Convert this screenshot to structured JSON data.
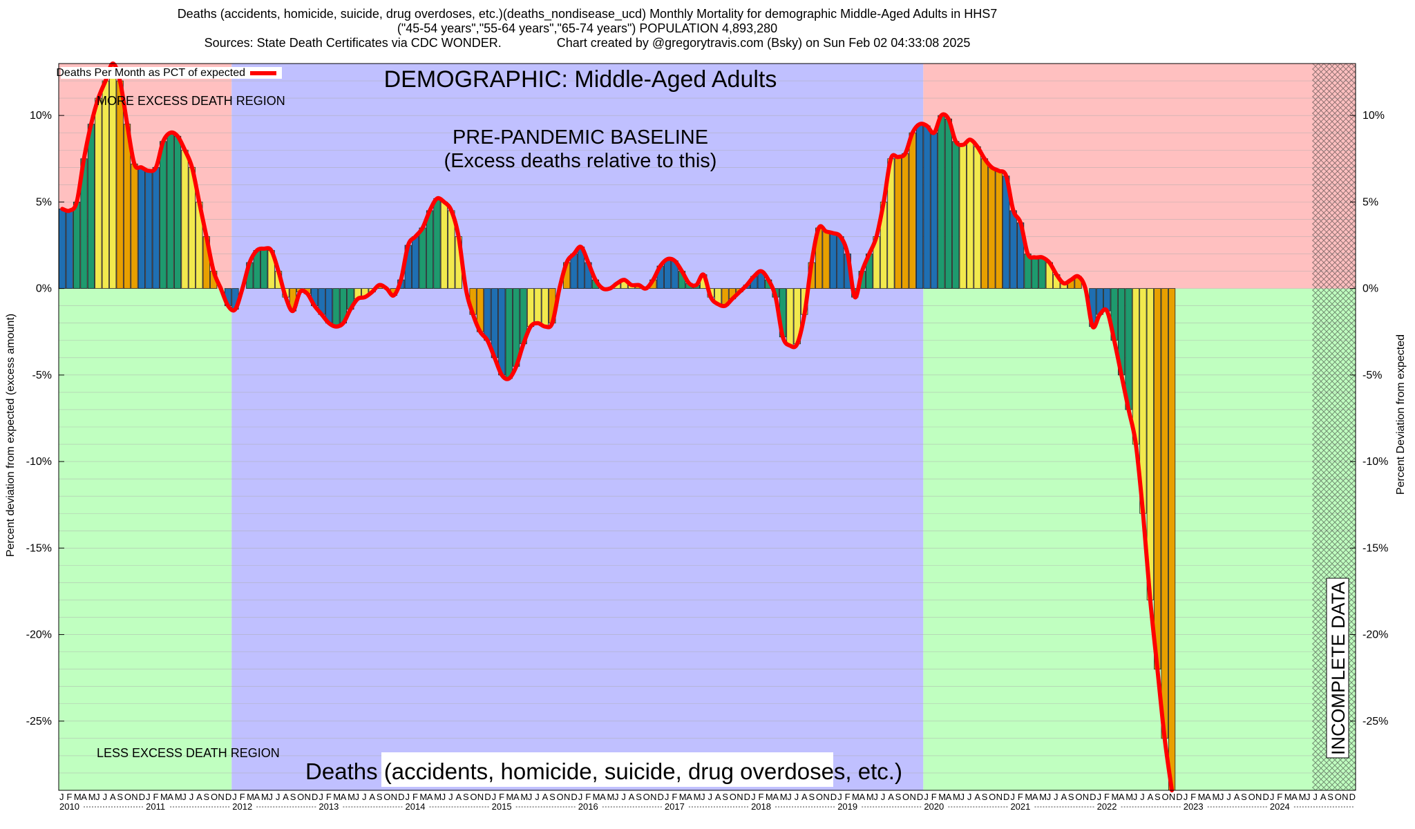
{
  "header": {
    "line1": "Deaths (accidents, homicide, suicide, drug overdoses, etc.)(deaths_nondisease_ucd) Monthly Mortality for demographic Middle-Aged Adults in HHS7",
    "line2": "(\"45-54 years\",\"55-64 years\",\"65-74 years\") POPULATION 4,893,280",
    "line3": "Sources: State Death Certificates via CDC WONDER.                Chart created by @gregorytravis.com (Bsky) on Sun Feb 02 04:33:08 2025"
  },
  "chart_data": {
    "type": "bar",
    "title": "DEMOGRAPHIC: Middle-Aged Adults",
    "bottom_title": "Deaths (accidents, homicide, suicide, drug overdoses, etc.)",
    "ylabel_left": "Percent deviation from expected (excess amount)",
    "ylabel_right": "Percent Deviation from expected",
    "legend": "Deaths Per Month as PCT of expected",
    "legend_position": "top-left",
    "ylim": [
      -29,
      13
    ],
    "yticks": [
      10,
      5,
      0,
      -5,
      -10,
      -15,
      -20,
      -25
    ],
    "ytick_labels": [
      "10%",
      "5%",
      "0%",
      "-5%",
      "-10%",
      "-15%",
      "-20%",
      "-25%"
    ],
    "grid": true,
    "months": [
      "J",
      "F",
      "M",
      "A",
      "M",
      "J",
      "J",
      "A",
      "S",
      "O",
      "N",
      "D"
    ],
    "years": [
      "2010",
      "2011",
      "2012",
      "2013",
      "2014",
      "2015",
      "2016",
      "2017",
      "2018",
      "2019",
      "2020",
      "2021",
      "2022",
      "2023",
      "2024"
    ],
    "x_start": "2010-01",
    "annotations": {
      "more_region": "MORE EXCESS DEATH REGION",
      "less_region": "LESS EXCESS DEATH REGION",
      "baseline_line1": "PRE-PANDEMIC BASELINE",
      "baseline_line2": "(Excess deaths relative to this)",
      "incomplete": "INCOMPLETE DATA"
    },
    "regions": {
      "baseline_start": "2012-01",
      "baseline_end": "2019-12",
      "incomplete_start": "2024-07"
    },
    "season_colors": {
      "winter": "#1f6fb2",
      "spring": "#1e9a6e",
      "summer": "#f2e94e",
      "autumn": "#e8a000"
    },
    "series": [
      {
        "name": "Deaths Per Month as PCT of expected",
        "color": "#ff0000",
        "values": [
          4.6,
          4.5,
          5.0,
          7.5,
          9.5,
          11.0,
          12.0,
          13.0,
          12.0,
          9.5,
          7.2,
          7.0,
          6.8,
          7.0,
          8.5,
          9.0,
          8.8,
          8.0,
          7.0,
          5.0,
          3.0,
          1.0,
          0.0,
          -1.0,
          -1.2,
          0.0,
          1.5,
          2.2,
          2.3,
          2.2,
          1.0,
          -0.5,
          -1.3,
          -0.2,
          -0.3,
          -1.0,
          -1.5,
          -2.0,
          -2.2,
          -2.0,
          -1.2,
          -0.6,
          -0.5,
          -0.2,
          0.2,
          0.0,
          -0.4,
          0.5,
          2.5,
          3.0,
          3.5,
          4.5,
          5.2,
          5.0,
          4.5,
          3.0,
          0.0,
          -1.5,
          -2.5,
          -3.0,
          -4.0,
          -5.0,
          -5.2,
          -4.5,
          -3.2,
          -2.2,
          -2.0,
          -2.2,
          -2.0,
          0.0,
          1.5,
          2.0,
          2.4,
          1.5,
          0.5,
          0.0,
          0.0,
          0.3,
          0.5,
          0.2,
          0.2,
          0.0,
          0.5,
          1.3,
          1.7,
          1.6,
          1.0,
          0.3,
          0.2,
          0.8,
          -0.5,
          -0.9,
          -1.0,
          -0.6,
          -0.2,
          0.2,
          0.7,
          1.0,
          0.5,
          -0.5,
          -2.8,
          -3.3,
          -3.2,
          -1.5,
          1.5,
          3.5,
          3.3,
          3.2,
          3.0,
          2.0,
          -0.5,
          1.0,
          2.0,
          3.0,
          5.0,
          7.5,
          7.6,
          7.8,
          9.0,
          9.5,
          9.4,
          9.0,
          10.0,
          9.8,
          8.5,
          8.3,
          8.6,
          8.2,
          7.5,
          7.0,
          6.8,
          6.5,
          4.5,
          3.8,
          2.0,
          1.8,
          1.8,
          1.5,
          0.8,
          0.3,
          0.5,
          0.7,
          0.0,
          -2.2,
          -1.5,
          -1.3,
          -3.0,
          -5.0,
          -7.0,
          -9.0,
          -13.0,
          -18.0,
          -22.0,
          -26.0,
          -29.0
        ]
      }
    ]
  }
}
